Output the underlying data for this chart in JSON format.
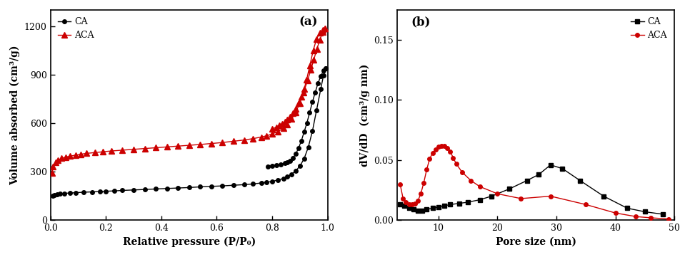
{
  "ax1": {
    "title": "(a)",
    "xlabel": "Relative pressure (P/P₀)",
    "ylabel": "Volume absorbed (cm³/g)",
    "xlim": [
      0,
      1.0
    ],
    "ylim": [
      0,
      1300
    ],
    "yticks": [
      0,
      300,
      600,
      900,
      1200
    ],
    "xticks": [
      0.0,
      0.2,
      0.4,
      0.6,
      0.8,
      1.0
    ],
    "CA_ads_x": [
      0.008,
      0.015,
      0.025,
      0.035,
      0.05,
      0.07,
      0.09,
      0.12,
      0.15,
      0.18,
      0.2,
      0.23,
      0.26,
      0.3,
      0.34,
      0.38,
      0.42,
      0.46,
      0.5,
      0.54,
      0.58,
      0.62,
      0.66,
      0.7,
      0.73,
      0.76,
      0.78,
      0.8,
      0.82,
      0.84,
      0.855,
      0.87,
      0.885,
      0.9,
      0.915,
      0.93,
      0.945,
      0.96,
      0.975,
      0.985,
      0.993
    ],
    "CA_ads_y": [
      152,
      157,
      161,
      163,
      166,
      168,
      170,
      173,
      175,
      177,
      179,
      181,
      184,
      187,
      190,
      193,
      196,
      199,
      202,
      206,
      209,
      212,
      216,
      220,
      224,
      230,
      234,
      240,
      248,
      258,
      268,
      285,
      305,
      335,
      380,
      450,
      550,
      680,
      810,
      895,
      940
    ],
    "CA_des_x": [
      0.993,
      0.985,
      0.975,
      0.965,
      0.955,
      0.945,
      0.935,
      0.925,
      0.915,
      0.905,
      0.895,
      0.885,
      0.875,
      0.865,
      0.855,
      0.845,
      0.83,
      0.815,
      0.8,
      0.785
    ],
    "CA_des_y": [
      940,
      925,
      890,
      845,
      790,
      730,
      665,
      600,
      545,
      490,
      445,
      410,
      385,
      368,
      358,
      352,
      346,
      340,
      336,
      332
    ],
    "ACA_ads_x": [
      0.005,
      0.01,
      0.018,
      0.028,
      0.04,
      0.055,
      0.07,
      0.09,
      0.11,
      0.13,
      0.16,
      0.19,
      0.22,
      0.26,
      0.3,
      0.34,
      0.38,
      0.42,
      0.46,
      0.5,
      0.54,
      0.58,
      0.62,
      0.66,
      0.7,
      0.73,
      0.76,
      0.78,
      0.8,
      0.82,
      0.84,
      0.855,
      0.87,
      0.885,
      0.9,
      0.912,
      0.924,
      0.936,
      0.948,
      0.96,
      0.972,
      0.982,
      0.991
    ],
    "ACA_ads_y": [
      290,
      330,
      358,
      372,
      382,
      390,
      396,
      402,
      408,
      413,
      418,
      423,
      428,
      433,
      438,
      443,
      448,
      453,
      458,
      463,
      468,
      474,
      480,
      488,
      496,
      504,
      514,
      522,
      533,
      548,
      568,
      593,
      625,
      668,
      725,
      790,
      868,
      958,
      1050,
      1120,
      1160,
      1175,
      1185
    ],
    "ACA_des_x": [
      0.991,
      0.982,
      0.972,
      0.961,
      0.95,
      0.939,
      0.928,
      0.917,
      0.906,
      0.895,
      0.885,
      0.875,
      0.865,
      0.855,
      0.845,
      0.835,
      0.825,
      0.815,
      0.8
    ],
    "ACA_des_y": [
      1185,
      1165,
      1115,
      1058,
      992,
      928,
      866,
      810,
      762,
      722,
      690,
      662,
      640,
      622,
      608,
      596,
      585,
      575,
      565
    ]
  },
  "ax2": {
    "title": "(b)",
    "xlabel": "Pore size (nm)",
    "ylabel": "dV/dD  (cm³/g nm)",
    "xlim": [
      3,
      50
    ],
    "ylim": [
      0,
      0.175
    ],
    "yticks": [
      0.0,
      0.05,
      0.1,
      0.15
    ],
    "xticks": [
      10,
      20,
      30,
      40,
      50
    ],
    "CA_x": [
      3.5,
      4.2,
      5.0,
      5.8,
      6.5,
      7.2,
      8.0,
      9.0,
      10.0,
      11.0,
      12.0,
      13.5,
      15.0,
      17.0,
      19.0,
      22.0,
      25.0,
      27.0,
      29.0,
      31.0,
      34.0,
      38.0,
      42.0,
      45.0,
      48.0
    ],
    "CA_y": [
      0.013,
      0.012,
      0.01,
      0.009,
      0.008,
      0.008,
      0.009,
      0.01,
      0.011,
      0.012,
      0.013,
      0.014,
      0.015,
      0.017,
      0.02,
      0.026,
      0.033,
      0.038,
      0.046,
      0.043,
      0.033,
      0.02,
      0.01,
      0.007,
      0.005
    ],
    "ACA_x": [
      3.5,
      4.0,
      4.5,
      5.0,
      5.5,
      6.0,
      6.5,
      7.0,
      7.5,
      8.0,
      8.5,
      9.0,
      9.5,
      10.0,
      10.5,
      11.0,
      11.5,
      12.0,
      12.5,
      13.0,
      14.0,
      15.5,
      17.0,
      20.0,
      24.0,
      29.0,
      35.0,
      40.0,
      43.5,
      46.0,
      49.0
    ],
    "ACA_y": [
      0.03,
      0.018,
      0.015,
      0.013,
      0.013,
      0.014,
      0.016,
      0.022,
      0.031,
      0.042,
      0.051,
      0.056,
      0.059,
      0.061,
      0.062,
      0.062,
      0.06,
      0.057,
      0.052,
      0.047,
      0.04,
      0.033,
      0.028,
      0.022,
      0.018,
      0.02,
      0.013,
      0.006,
      0.003,
      0.002,
      0.001
    ]
  },
  "CA_color": "#000000",
  "ACA_color": "#cc0000",
  "bg_color": "#ffffff",
  "linewidth": 1.0,
  "legend_fontsize": 9,
  "label_fontsize": 10,
  "tick_fontsize": 9,
  "title_fontsize": 12,
  "ms_ads_ca": 4,
  "ms_ads_aca": 6,
  "ms_des_ca": 4,
  "ms_des_aca": 6,
  "ms_b_ca": 4,
  "ms_b_aca": 4
}
